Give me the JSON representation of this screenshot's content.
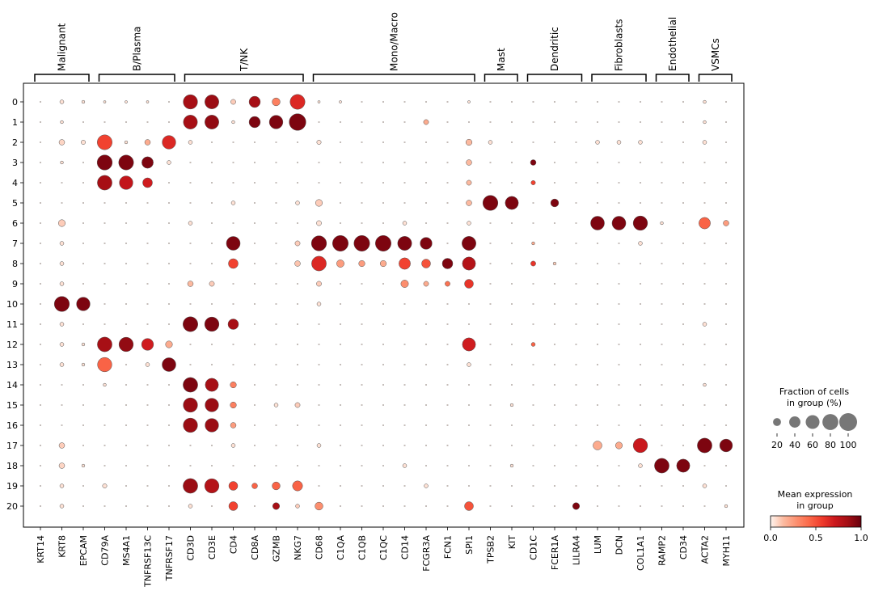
{
  "chart_data": {
    "type": "dotplot",
    "genes": [
      "KRT14",
      "KRT8",
      "EPCAM",
      "CD79A",
      "MS4A1",
      "TNFRSF13C",
      "TNFRSF17",
      "CD3D",
      "CD3E",
      "CD4",
      "CD8A",
      "GZMB",
      "NKG7",
      "CD68",
      "C1QA",
      "C1QB",
      "C1QC",
      "CD14",
      "FCGR3A",
      "FCN1",
      "SPI1",
      "TPSB2",
      "KIT",
      "CD1C",
      "FCER1A",
      "LILRA4",
      "LUM",
      "DCN",
      "COL1A1",
      "RAMP2",
      "CD34",
      "ACTA2",
      "MYH11"
    ],
    "clusters": [
      "0",
      "1",
      "2",
      "3",
      "4",
      "5",
      "6",
      "7",
      "8",
      "9",
      "10",
      "11",
      "12",
      "13",
      "14",
      "15",
      "16",
      "17",
      "18",
      "19",
      "20"
    ],
    "groups": [
      {
        "label": "Malignant",
        "start": 0,
        "end": 2
      },
      {
        "label": "B/Plasma",
        "start": 3,
        "end": 6
      },
      {
        "label": "T/NK",
        "start": 7,
        "end": 12
      },
      {
        "label": "Mono/Macro",
        "start": 13,
        "end": 20
      },
      {
        "label": "Mast",
        "start": 21,
        "end": 22
      },
      {
        "label": "Dendritic",
        "start": 23,
        "end": 25
      },
      {
        "label": "Fibroblasts",
        "start": 26,
        "end": 28
      },
      {
        "label": "Endothelial",
        "start": 29,
        "end": 30
      },
      {
        "label": "VSMCs",
        "start": 31,
        "end": 32
      }
    ],
    "points": [
      {
        "c": 0,
        "g": "KRT8",
        "f": 5,
        "e": 0.05
      },
      {
        "c": 0,
        "g": "EPCAM",
        "f": 3,
        "e": 0.05
      },
      {
        "c": 0,
        "g": "CD79A",
        "f": 2,
        "e": 0.05
      },
      {
        "c": 0,
        "g": "MS4A1",
        "f": 2,
        "e": 0.05
      },
      {
        "c": 0,
        "g": "TNFRSF13C",
        "f": 2,
        "e": 0.05
      },
      {
        "c": 0,
        "g": "CD3D",
        "f": 65,
        "e": 0.85
      },
      {
        "c": 0,
        "g": "CD3E",
        "f": 62,
        "e": 0.88
      },
      {
        "c": 0,
        "g": "CD4",
        "f": 8,
        "e": 0.1
      },
      {
        "c": 0,
        "g": "CD8A",
        "f": 40,
        "e": 0.85
      },
      {
        "c": 0,
        "g": "GZMB",
        "f": 20,
        "e": 0.35
      },
      {
        "c": 0,
        "g": "NKG7",
        "f": 70,
        "e": 0.65
      },
      {
        "c": 0,
        "g": "ACTA2",
        "f": 3,
        "e": 0.05
      },
      {
        "c": 0,
        "g": "CD68",
        "f": 2,
        "e": 0.05
      },
      {
        "c": 0,
        "g": "C1QA",
        "f": 2,
        "e": 0.05
      },
      {
        "c": 0,
        "g": "SPI1",
        "f": 2,
        "e": 0.05
      },
      {
        "c": 1,
        "g": "KRT8",
        "f": 3,
        "e": 0.05
      },
      {
        "c": 1,
        "g": "CD3D",
        "f": 62,
        "e": 0.85
      },
      {
        "c": 1,
        "g": "CD3E",
        "f": 62,
        "e": 0.9
      },
      {
        "c": 1,
        "g": "CD4",
        "f": 3,
        "e": 0.05
      },
      {
        "c": 1,
        "g": "CD8A",
        "f": 40,
        "e": 0.95
      },
      {
        "c": 1,
        "g": "GZMB",
        "f": 58,
        "e": 0.95
      },
      {
        "c": 1,
        "g": "NKG7",
        "f": 88,
        "e": 0.95
      },
      {
        "c": 1,
        "g": "FCGR3A",
        "f": 8,
        "e": 0.2
      },
      {
        "c": 1,
        "g": "ACTA2",
        "f": 3,
        "e": 0.05
      },
      {
        "c": 2,
        "g": "KRT8",
        "f": 10,
        "e": 0.08
      },
      {
        "c": 2,
        "g": "EPCAM",
        "f": 6,
        "e": 0.05
      },
      {
        "c": 2,
        "g": "CD79A",
        "f": 70,
        "e": 0.55
      },
      {
        "c": 2,
        "g": "MS4A1",
        "f": 3,
        "e": 0.05
      },
      {
        "c": 2,
        "g": "TNFRSF13C",
        "f": 10,
        "e": 0.2
      },
      {
        "c": 2,
        "g": "TNFRSF17",
        "f": 58,
        "e": 0.65
      },
      {
        "c": 2,
        "g": "CD3D",
        "f": 5,
        "e": 0.05
      },
      {
        "c": 2,
        "g": "CD68",
        "f": 6,
        "e": 0.05
      },
      {
        "c": 2,
        "g": "SPI1",
        "f": 12,
        "e": 0.15
      },
      {
        "c": 2,
        "g": "TPSB2",
        "f": 5,
        "e": 0.05
      },
      {
        "c": 2,
        "g": "LUM",
        "f": 5,
        "e": 0.05
      },
      {
        "c": 2,
        "g": "DCN",
        "f": 5,
        "e": 0.05
      },
      {
        "c": 2,
        "g": "COL1A1",
        "f": 5,
        "e": 0.05
      },
      {
        "c": 2,
        "g": "ACTA2",
        "f": 5,
        "e": 0.05
      },
      {
        "c": 3,
        "g": "CD79A",
        "f": 72,
        "e": 0.95
      },
      {
        "c": 3,
        "g": "MS4A1",
        "f": 70,
        "e": 0.95
      },
      {
        "c": 3,
        "g": "TNFRSF13C",
        "f": 42,
        "e": 0.95
      },
      {
        "c": 3,
        "g": "TNFRSF17",
        "f": 5,
        "e": 0.05
      },
      {
        "c": 3,
        "g": "SPI1",
        "f": 10,
        "e": 0.15
      },
      {
        "c": 3,
        "g": "CD1C",
        "f": 10,
        "e": 0.95
      },
      {
        "c": 3,
        "g": "KRT8",
        "f": 3,
        "e": 0.05
      },
      {
        "c": 4,
        "g": "CD79A",
        "f": 68,
        "e": 0.85
      },
      {
        "c": 4,
        "g": "MS4A1",
        "f": 58,
        "e": 0.75
      },
      {
        "c": 4,
        "g": "TNFRSF13C",
        "f": 30,
        "e": 0.7
      },
      {
        "c": 4,
        "g": "SPI1",
        "f": 8,
        "e": 0.15
      },
      {
        "c": 4,
        "g": "CD1C",
        "f": 6,
        "e": 0.55
      },
      {
        "c": 5,
        "g": "CD68",
        "f": 15,
        "e": 0.1
      },
      {
        "c": 5,
        "g": "SPI1",
        "f": 10,
        "e": 0.15
      },
      {
        "c": 5,
        "g": "CD4",
        "f": 5,
        "e": 0.05
      },
      {
        "c": 5,
        "g": "NKG7",
        "f": 5,
        "e": 0.05
      },
      {
        "c": 5,
        "g": "TPSB2",
        "f": 72,
        "e": 0.95
      },
      {
        "c": 5,
        "g": "KIT",
        "f": 55,
        "e": 0.95
      },
      {
        "c": 5,
        "g": "FCER1A",
        "f": 20,
        "e": 0.95
      },
      {
        "c": 6,
        "g": "KRT8",
        "f": 15,
        "e": 0.1
      },
      {
        "c": 6,
        "g": "CD3D",
        "f": 5,
        "e": 0.05
      },
      {
        "c": 6,
        "g": "CD68",
        "f": 8,
        "e": 0.05
      },
      {
        "c": 6,
        "g": "CD14",
        "f": 5,
        "e": 0.05
      },
      {
        "c": 6,
        "g": "SPI1",
        "f": 5,
        "e": 0.05
      },
      {
        "c": 6,
        "g": "LUM",
        "f": 60,
        "e": 0.95
      },
      {
        "c": 6,
        "g": "DCN",
        "f": 60,
        "e": 0.95
      },
      {
        "c": 6,
        "g": "COL1A1",
        "f": 65,
        "e": 0.95
      },
      {
        "c": 6,
        "g": "RAMP2",
        "f": 3,
        "e": 0.05
      },
      {
        "c": 6,
        "g": "ACTA2",
        "f": 42,
        "e": 0.45
      },
      {
        "c": 6,
        "g": "MYH11",
        "f": 10,
        "e": 0.25
      },
      {
        "c": 7,
        "g": "KRT8",
        "f": 5,
        "e": 0.05
      },
      {
        "c": 7,
        "g": "CD4",
        "f": 60,
        "e": 0.95
      },
      {
        "c": 7,
        "g": "NKG7",
        "f": 8,
        "e": 0.1
      },
      {
        "c": 7,
        "g": "CD68",
        "f": 72,
        "e": 0.95
      },
      {
        "c": 7,
        "g": "C1QA",
        "f": 78,
        "e": 0.95
      },
      {
        "c": 7,
        "g": "C1QB",
        "f": 78,
        "e": 0.95
      },
      {
        "c": 7,
        "g": "C1QC",
        "f": 78,
        "e": 0.95
      },
      {
        "c": 7,
        "g": "CD14",
        "f": 62,
        "e": 0.95
      },
      {
        "c": 7,
        "g": "FCGR3A",
        "f": 45,
        "e": 0.95
      },
      {
        "c": 7,
        "g": "SPI1",
        "f": 62,
        "e": 0.95
      },
      {
        "c": 7,
        "g": "CD1C",
        "f": 3,
        "e": 0.2
      },
      {
        "c": 7,
        "g": "COL1A1",
        "f": 5,
        "e": 0.05
      },
      {
        "c": 8,
        "g": "KRT8",
        "f": 5,
        "e": 0.05
      },
      {
        "c": 8,
        "g": "CD4",
        "f": 30,
        "e": 0.55
      },
      {
        "c": 8,
        "g": "NKG7",
        "f": 10,
        "e": 0.12
      },
      {
        "c": 8,
        "g": "CD68",
        "f": 68,
        "e": 0.65
      },
      {
        "c": 8,
        "g": "C1QA",
        "f": 18,
        "e": 0.25
      },
      {
        "c": 8,
        "g": "C1QB",
        "f": 12,
        "e": 0.25
      },
      {
        "c": 8,
        "g": "C1QC",
        "f": 12,
        "e": 0.2
      },
      {
        "c": 8,
        "g": "CD14",
        "f": 42,
        "e": 0.55
      },
      {
        "c": 8,
        "g": "FCGR3A",
        "f": 25,
        "e": 0.5
      },
      {
        "c": 8,
        "g": "FCN1",
        "f": 35,
        "e": 0.95
      },
      {
        "c": 8,
        "g": "SPI1",
        "f": 55,
        "e": 0.8
      },
      {
        "c": 8,
        "g": "CD1C",
        "f": 8,
        "e": 0.6
      },
      {
        "c": 8,
        "g": "FCER1A",
        "f": 3,
        "e": 0.1
      },
      {
        "c": 9,
        "g": "KRT8",
        "f": 5,
        "e": 0.05
      },
      {
        "c": 9,
        "g": "CD3D",
        "f": 10,
        "e": 0.15
      },
      {
        "c": 9,
        "g": "CD3E",
        "f": 8,
        "e": 0.1
      },
      {
        "c": 9,
        "g": "CD68",
        "f": 8,
        "e": 0.1
      },
      {
        "c": 9,
        "g": "CD14",
        "f": 18,
        "e": 0.3
      },
      {
        "c": 9,
        "g": "FCGR3A",
        "f": 8,
        "e": 0.2
      },
      {
        "c": 9,
        "g": "FCN1",
        "f": 8,
        "e": 0.4
      },
      {
        "c": 9,
        "g": "SPI1",
        "f": 25,
        "e": 0.6
      },
      {
        "c": 10,
        "g": "KRT8",
        "f": 72,
        "e": 0.95
      },
      {
        "c": 10,
        "g": "EPCAM",
        "f": 58,
        "e": 0.95
      },
      {
        "c": 10,
        "g": "CD68",
        "f": 5,
        "e": 0.05
      },
      {
        "c": 11,
        "g": "KRT8",
        "f": 5,
        "e": 0.05
      },
      {
        "c": 11,
        "g": "CD3D",
        "f": 70,
        "e": 0.95
      },
      {
        "c": 11,
        "g": "CD3E",
        "f": 65,
        "e": 0.95
      },
      {
        "c": 11,
        "g": "CD4",
        "f": 35,
        "e": 0.85
      },
      {
        "c": 11,
        "g": "ACTA2",
        "f": 5,
        "e": 0.05
      },
      {
        "c": 12,
        "g": "KRT8",
        "f": 5,
        "e": 0.05
      },
      {
        "c": 12,
        "g": "EPCAM",
        "f": 3,
        "e": 0.05
      },
      {
        "c": 12,
        "g": "CD79A",
        "f": 68,
        "e": 0.85
      },
      {
        "c": 12,
        "g": "MS4A1",
        "f": 65,
        "e": 0.9
      },
      {
        "c": 12,
        "g": "TNFRSF13C",
        "f": 45,
        "e": 0.7
      },
      {
        "c": 12,
        "g": "TNFRSF17",
        "f": 15,
        "e": 0.2
      },
      {
        "c": 12,
        "g": "SPI1",
        "f": 55,
        "e": 0.7
      },
      {
        "c": 12,
        "g": "CD1C",
        "f": 5,
        "e": 0.45
      },
      {
        "c": 13,
        "g": "KRT8",
        "f": 5,
        "e": 0.05
      },
      {
        "c": 13,
        "g": "EPCAM",
        "f": 3,
        "e": 0.05
      },
      {
        "c": 13,
        "g": "CD79A",
        "f": 65,
        "e": 0.45
      },
      {
        "c": 13,
        "g": "TNFRSF13C",
        "f": 5,
        "e": 0.05
      },
      {
        "c": 13,
        "g": "TNFRSF17",
        "f": 60,
        "e": 0.95
      },
      {
        "c": 13,
        "g": "SPI1",
        "f": 5,
        "e": 0.05
      },
      {
        "c": 14,
        "g": "CD79A",
        "f": 3,
        "e": 0.05
      },
      {
        "c": 14,
        "g": "CD3D",
        "f": 68,
        "e": 0.95
      },
      {
        "c": 14,
        "g": "CD3E",
        "f": 55,
        "e": 0.85
      },
      {
        "c": 14,
        "g": "CD4",
        "f": 12,
        "e": 0.35
      },
      {
        "c": 14,
        "g": "ACTA2",
        "f": 3,
        "e": 0.05
      },
      {
        "c": 15,
        "g": "CD3D",
        "f": 65,
        "e": 0.88
      },
      {
        "c": 15,
        "g": "CD3E",
        "f": 58,
        "e": 0.88
      },
      {
        "c": 15,
        "g": "CD4",
        "f": 12,
        "e": 0.35
      },
      {
        "c": 15,
        "g": "GZMB",
        "f": 5,
        "e": 0.05
      },
      {
        "c": 15,
        "g": "NKG7",
        "f": 8,
        "e": 0.1
      },
      {
        "c": 15,
        "g": "KIT",
        "f": 3,
        "e": 0.05
      },
      {
        "c": 16,
        "g": "CD3D",
        "f": 65,
        "e": 0.88
      },
      {
        "c": 16,
        "g": "CD3E",
        "f": 58,
        "e": 0.88
      },
      {
        "c": 16,
        "g": "CD4",
        "f": 10,
        "e": 0.25
      },
      {
        "c": 17,
        "g": "KRT8",
        "f": 10,
        "e": 0.1
      },
      {
        "c": 17,
        "g": "CD4",
        "f": 5,
        "e": 0.05
      },
      {
        "c": 17,
        "g": "CD68",
        "f": 5,
        "e": 0.05
      },
      {
        "c": 17,
        "g": "LUM",
        "f": 25,
        "e": 0.2
      },
      {
        "c": 17,
        "g": "DCN",
        "f": 15,
        "e": 0.2
      },
      {
        "c": 17,
        "g": "COL1A1",
        "f": 65,
        "e": 0.72
      },
      {
        "c": 17,
        "g": "ACTA2",
        "f": 68,
        "e": 0.95
      },
      {
        "c": 17,
        "g": "MYH11",
        "f": 52,
        "e": 0.95
      },
      {
        "c": 18,
        "g": "KRT8",
        "f": 10,
        "e": 0.08
      },
      {
        "c": 18,
        "g": "EPCAM",
        "f": 3,
        "e": 0.05
      },
      {
        "c": 18,
        "g": "CD14",
        "f": 5,
        "e": 0.05
      },
      {
        "c": 18,
        "g": "KIT",
        "f": 3,
        "e": 0.05
      },
      {
        "c": 18,
        "g": "COL1A1",
        "f": 5,
        "e": 0.05
      },
      {
        "c": 18,
        "g": "RAMP2",
        "f": 68,
        "e": 0.95
      },
      {
        "c": 18,
        "g": "CD34",
        "f": 55,
        "e": 0.95
      },
      {
        "c": 19,
        "g": "KRT8",
        "f": 5,
        "e": 0.05
      },
      {
        "c": 19,
        "g": "CD79A",
        "f": 6,
        "e": 0.05
      },
      {
        "c": 19,
        "g": "CD3D",
        "f": 68,
        "e": 0.88
      },
      {
        "c": 19,
        "g": "CD3E",
        "f": 65,
        "e": 0.8
      },
      {
        "c": 19,
        "g": "CD4",
        "f": 25,
        "e": 0.55
      },
      {
        "c": 19,
        "g": "CD8A",
        "f": 10,
        "e": 0.45
      },
      {
        "c": 19,
        "g": "GZMB",
        "f": 20,
        "e": 0.45
      },
      {
        "c": 19,
        "g": "NKG7",
        "f": 32,
        "e": 0.45
      },
      {
        "c": 19,
        "g": "FCGR3A",
        "f": 5,
        "e": 0.05
      },
      {
        "c": 19,
        "g": "ACTA2",
        "f": 5,
        "e": 0.05
      },
      {
        "c": 20,
        "g": "KRT8",
        "f": 5,
        "e": 0.05
      },
      {
        "c": 20,
        "g": "CD3D",
        "f": 5,
        "e": 0.05
      },
      {
        "c": 20,
        "g": "CD4",
        "f": 25,
        "e": 0.55
      },
      {
        "c": 20,
        "g": "GZMB",
        "f": 15,
        "e": 0.85
      },
      {
        "c": 20,
        "g": "NKG7",
        "f": 5,
        "e": 0.1
      },
      {
        "c": 20,
        "g": "CD68",
        "f": 20,
        "e": 0.3
      },
      {
        "c": 20,
        "g": "SPI1",
        "f": 25,
        "e": 0.5
      },
      {
        "c": 20,
        "g": "LILRA4",
        "f": 15,
        "e": 0.95
      },
      {
        "c": 20,
        "g": "MYH11",
        "f": 3,
        "e": 0.05
      }
    ],
    "size_legend": {
      "title_lines": [
        "Fraction of cells",
        "in group (%)"
      ],
      "values": [
        20,
        40,
        60,
        80,
        100
      ],
      "labels": [
        "20",
        "40",
        "60",
        "80",
        "100"
      ]
    },
    "color_legend": {
      "title_lines": [
        "Mean expression",
        "in group"
      ],
      "range": [
        0.0,
        1.0
      ],
      "tick_labels": [
        "0.0",
        "0.5",
        "1.0"
      ],
      "colormap": "Reds",
      "colors": [
        "#fff5f0",
        "#fcbba1",
        "#fc9272",
        "#fb6a4a",
        "#ef3b2c",
        "#cb181d",
        "#a50f15",
        "#67000d"
      ]
    },
    "grid": false
  }
}
